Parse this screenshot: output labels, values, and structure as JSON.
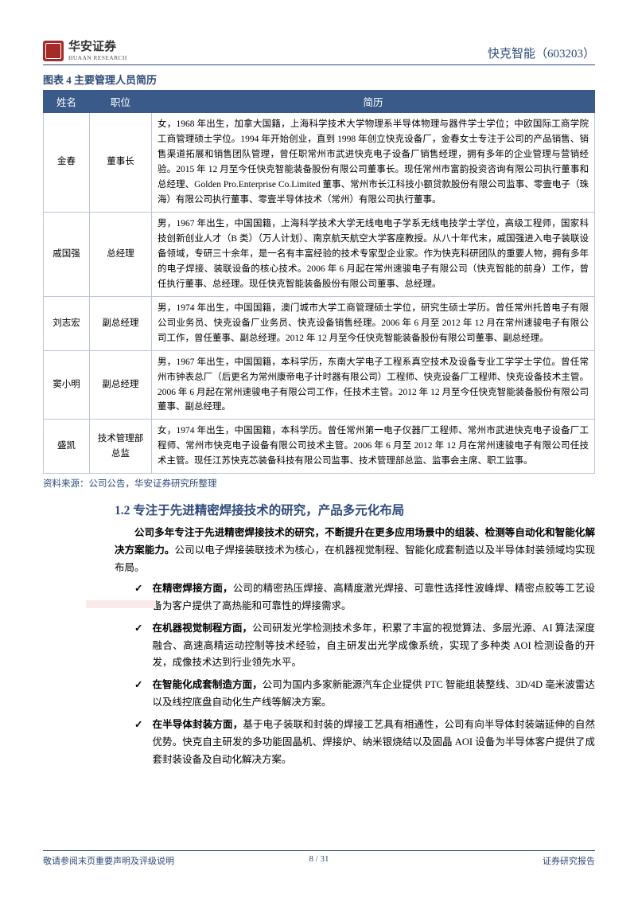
{
  "header": {
    "logo_main": "华安证券",
    "logo_sub": "HUAAN RESEARCH",
    "stock": "快克智能（603203）"
  },
  "figure_title": "图表 4 主要管理人员简历",
  "table": {
    "headers": [
      "姓名",
      "职位",
      "简历"
    ],
    "rows": [
      {
        "name": "金春",
        "pos": "董事长",
        "bio": "女，1968 年出生，加拿大国籍，上海科学技术大学物理系半导体物理与器件学士学位；中欧国际工商学院工商管理硕士学位。1994 年开始创业，直到 1998 年创立快克设备厂，金春女士专注于公司的产品销售、销售渠道拓展和销售团队管理，曾任职常州市武进快克电子设备厂销售经理，拥有多年的企业管理与营销经验。2015 年 12 月至今任快克智能装备股份有限公司董事长。现任常州市富韵投资咨询有限公司执行董事和总经理、Golden Pro.Enterprise Co.Limited 董事、常州市长江科技小额贷款股份有限公司监事、零壹电子（珠海）有限公司执行董事、零壹半导体技术（常州）有限公司执行董事。"
      },
      {
        "name": "戚国强",
        "pos": "总经理",
        "bio": "男，1967 年出生，中国国籍，上海科学技术大学无线电电子学系无线电技学士学位，高级工程师，国家科技创新创业人才（B 类）（万人计划）、南京航天航空大学客座教授。从八十年代末，戚国强进入电子装联设备领域，专研三十余年，是一名有丰富经验的技术专家型企业家。作为快克科研团队的重要人物，拥有多年的电子焊接、装联设备的核心技术。2006 年 6 月起在常州速骏电子有限公司（快克智能的前身）工作，曾任执行董事、总经理。现任快克智能装备股份有限公司董事、总经理。"
      },
      {
        "name": "刘志宏",
        "pos": "副总经理",
        "bio": "男，1974 年出生，中国国籍，澳门城市大学工商管理硕士学位，研究生硕士学历。曾任常州托普电子有限公司业务员、快克设备厂业务员、快克设备销售经理。2006 年 6 月至 2012 年 12 月在常州速骏电子有限公司工作，曾任董事、副总经理。2012 年 12 月至今任快克智能装备股份有限公司董事、副总经理。"
      },
      {
        "name": "窦小明",
        "pos": "副总经理",
        "bio": "男，1967 年出生，中国国籍，本科学历，东南大学电子工程系真空技术及设备专业工学学士学位。曾任常州市钟表总厂（后更名为常州康帝电子计时器有限公司）工程师、快克设备厂工程师、快克设备技术主管。2006 年 6 月起在常州速骏电子有限公司工作，任技术主管。2012 年 12 月至今任快克智能装备股份有限公司董事、副总经理。"
      },
      {
        "name": "盛凯",
        "pos": "技术管理部总监",
        "bio": "女，1974 年出生，中国国籍，本科学历。曾任常州第一电子仪器厂工程师、常州市武进快克电子设备厂工程师、常州市快克电子设备有限公司技术主管。2006 年 6 月至 2012 年 12 月在常州速骏电子有限公司任技术主管。现任江苏快克芯装备科技有限公司监事、技术管理部总监、监事会主席、职工监事。"
      }
    ]
  },
  "source": "资料来源：公司公告，华安证券研究所整理",
  "section": {
    "title": "1.2 专注于先进精密焊接技术的研究，产品多元化布局",
    "para_bold": "公司多年专注于先进精密焊接技术的研究，不断提升在更多应用场景中的组装、检测等自动化和智能化解决方案能力。",
    "para_tail": "公司以电子焊接装联技术为核心，在机器视觉制程、智能化成套制造以及半导体封装领域均实现布局。",
    "bullets": [
      {
        "head": "在精密焊接方面，",
        "body": "公司的精密热压焊接、高精度激光焊接、可靠性选择性波峰焊、精密点胶等工艺设备为客户提供了高热能和可靠性的焊接需求。"
      },
      {
        "head": "在机器视觉制程方面，",
        "body": "公司研发光学检测技术多年，积累了丰富的视觉算法、多层光源、AI 算法深度融合、高速高精运动控制等技术经验，自主研发出光学成像系统，实现了多种类 AOI 检测设备的开发，成像技术达到行业领先水平。"
      },
      {
        "head": "在智能化成套制造方面，",
        "body": "公司为国内多家新能源汽车企业提供 PTC 智能组装整线、3D/4D 毫米波雷达以及线控底盘自动化生产线等解决方案。"
      },
      {
        "head": "在半导体封装方面，",
        "body": "基于电子装联和封装的焊接工艺具有相通性，公司有向半导体封装端延伸的自然优势。快克自主研发的多功能固晶机、焊接炉、纳米银烧结以及固晶 AOI 设备为半导体客户提供了成套封装设备及自动化解决方案。"
      }
    ]
  },
  "footer": {
    "left": "敬请参阅末页重要声明及评级说明",
    "center": "8 / 31",
    "right": "证券研究报告"
  },
  "colors": {
    "accent": "#2e4a7a",
    "table_header_bg": "#3a5a8a",
    "border": "#b8c4d8",
    "logo": "#a52a2a",
    "pink": "#fbeaea"
  }
}
